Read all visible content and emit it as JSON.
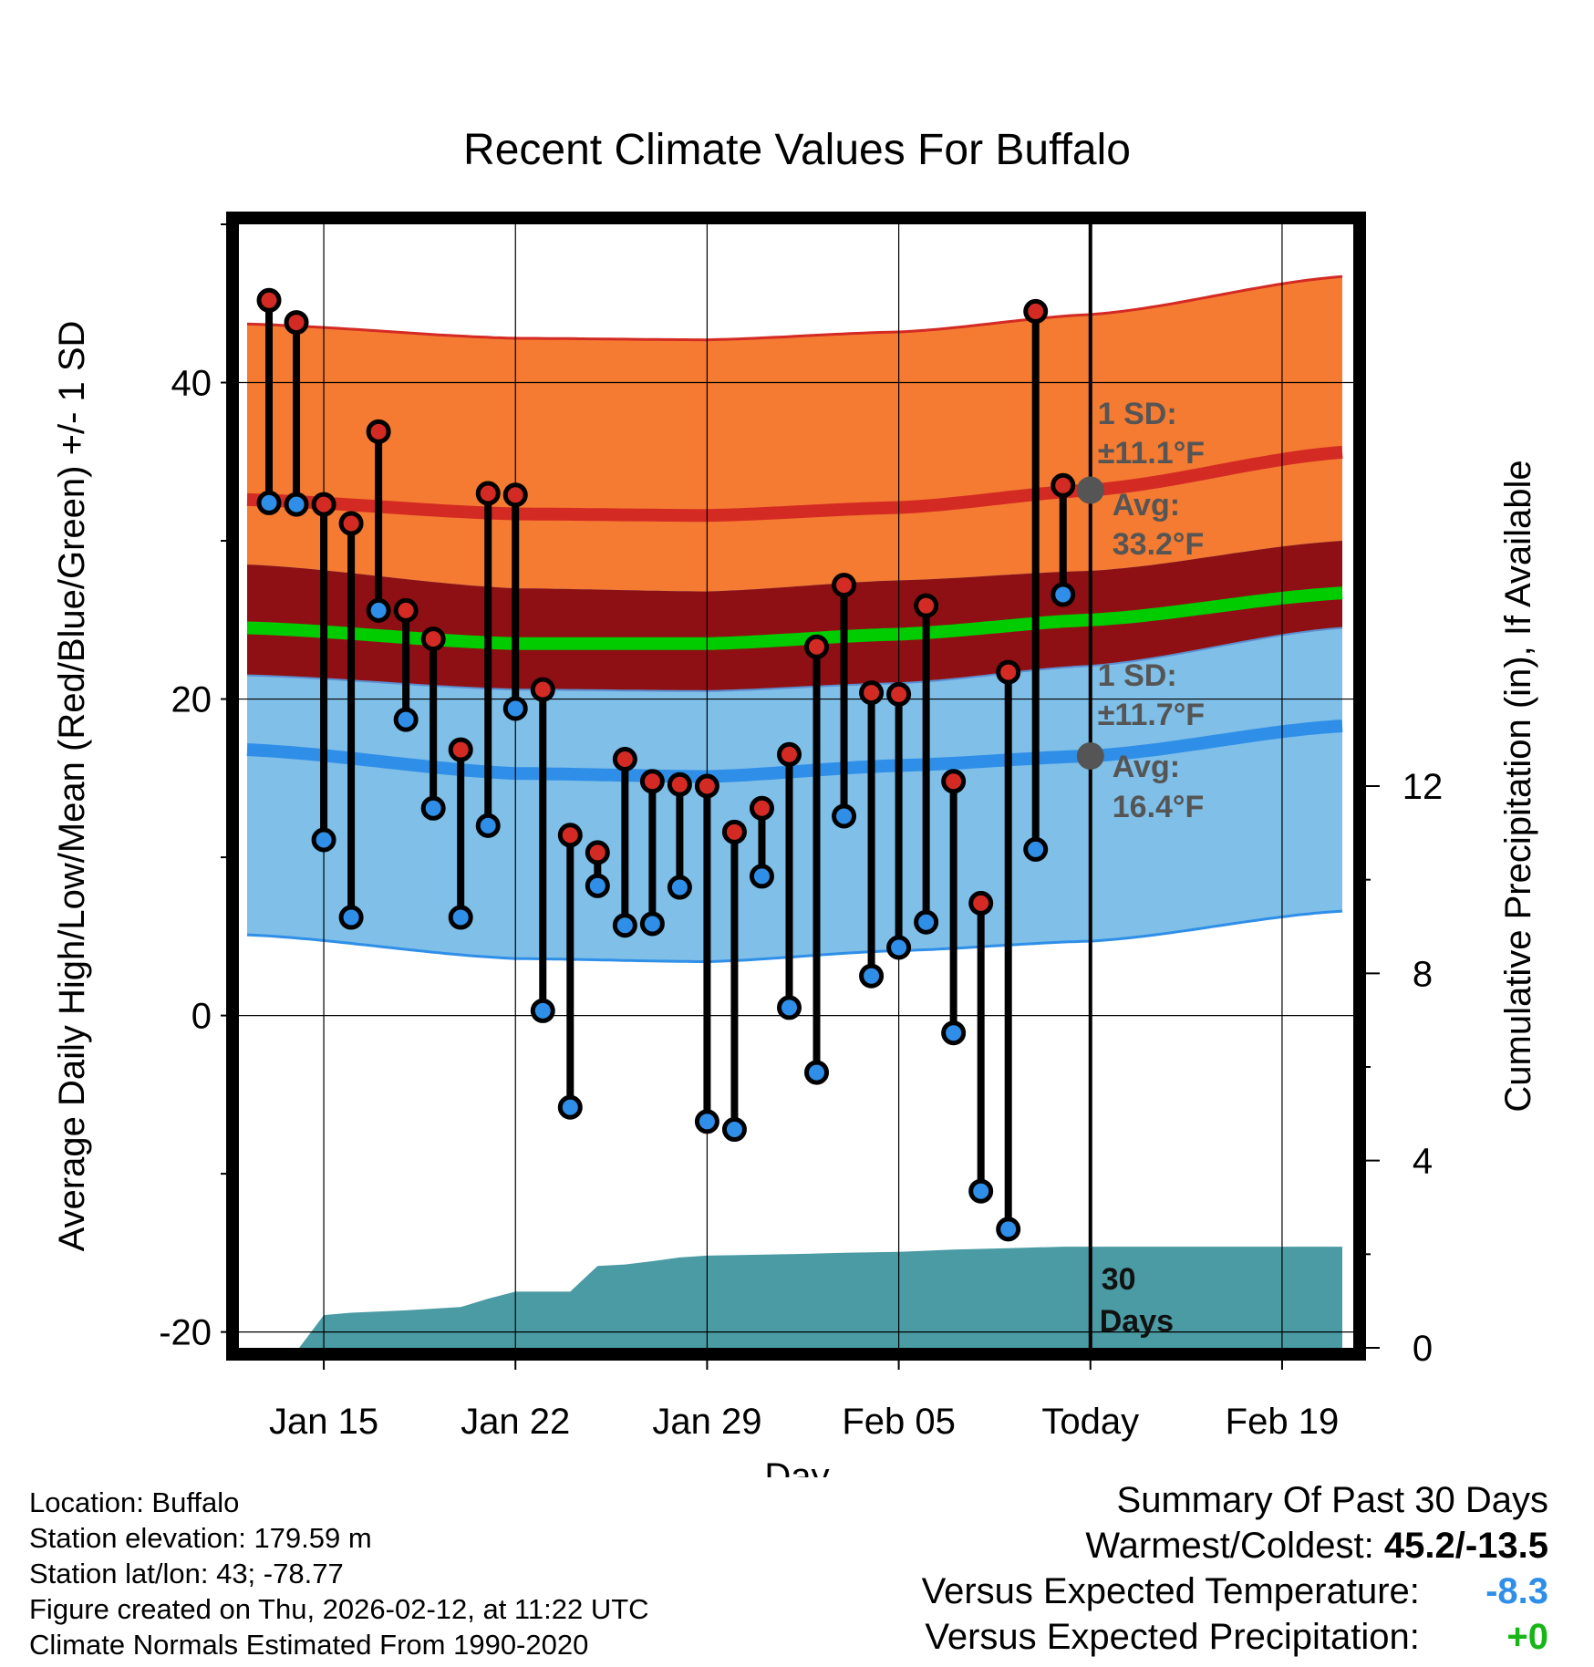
{
  "chart_data": {
    "type": "line",
    "title": "Recent Climate Values For Buffalo",
    "xlabel": "Day",
    "ylabel_left": "Average Daily High/Low/Mean (Red/Blue/Green) +/- 1 SD",
    "ylabel_right": "Cumulative Precipitation (in), If Available",
    "y_left_range": [
      -21,
      50
    ],
    "y_left_ticks": [
      "-20",
      "0",
      "20",
      "40"
    ],
    "y_left_tick_values": [
      -20,
      0,
      20,
      40
    ],
    "y_right_range": [
      0,
      24
    ],
    "y_right_ticks": [
      "0",
      "4",
      "8",
      "12"
    ],
    "y_right_tick_values": [
      0,
      4,
      8,
      12
    ],
    "x_range": [
      11.9,
      52.6
    ],
    "x_ticks": [
      "Jan 15",
      "Jan 22",
      "Jan 29",
      "Feb 05",
      "Today",
      "Feb 19"
    ],
    "x_tick_values": [
      15,
      22,
      29,
      36,
      43,
      50
    ],
    "today_x": 43,
    "highs": [
      45.2,
      43.8,
      32.3,
      31.1,
      36.9,
      25.6,
      23.8,
      16.8,
      33.0,
      32.9,
      20.6,
      11.4,
      10.3,
      16.2,
      14.8,
      14.6,
      14.5,
      11.6,
      13.1,
      16.5,
      23.3,
      27.2,
      20.4,
      20.3,
      25.9,
      14.8,
      7.1,
      21.7,
      44.5,
      33.5
    ],
    "lows": [
      32.4,
      32.3,
      11.1,
      6.2,
      25.6,
      18.7,
      13.1,
      6.2,
      12.0,
      19.4,
      0.3,
      -5.8,
      8.2,
      5.7,
      5.8,
      8.1,
      -6.7,
      -7.2,
      8.8,
      0.5,
      -3.6,
      12.6,
      2.5,
      4.3,
      5.9,
      -1.1,
      -11.1,
      -13.5,
      10.5,
      26.6
    ],
    "first_day": 13,
    "normal_high": {
      "days": [
        12.2,
        22,
        29,
        36,
        43,
        52.2
      ],
      "values": [
        32.6,
        31.7,
        31.6,
        32.1,
        33.2,
        35.6
      ]
    },
    "normal_mean": {
      "days": [
        12.2,
        22,
        29,
        36,
        43,
        52.2
      ],
      "values": [
        24.5,
        23.5,
        23.5,
        24.1,
        25.0,
        26.7
      ]
    },
    "normal_low": {
      "days": [
        12.2,
        22,
        29,
        36,
        43,
        52.2
      ],
      "values": [
        16.8,
        15.3,
        15.1,
        15.8,
        16.4,
        18.3
      ]
    },
    "sd_high": 11.1,
    "sd_low": 11.7,
    "precip": {
      "days": [
        15,
        16,
        18,
        20,
        21,
        22,
        23,
        24,
        25,
        26,
        27,
        28,
        29,
        30,
        32,
        34,
        36,
        38,
        40,
        42,
        43,
        52.2
      ],
      "values": [
        0.7,
        0.75,
        0.8,
        0.87,
        1.05,
        1.2,
        1.2,
        1.2,
        1.75,
        1.78,
        1.85,
        1.93,
        1.97,
        1.98,
        2.0,
        2.03,
        2.05,
        2.1,
        2.13,
        2.16,
        2.16,
        2.16
      ]
    },
    "annotations": {
      "high_sd": [
        "1 SD:",
        "±11.1°F"
      ],
      "high_avg": [
        "Avg:",
        "33.2°F"
      ],
      "low_sd": [
        "1 SD:",
        "±11.7°F"
      ],
      "low_avg": [
        "Avg:",
        "16.4°F"
      ],
      "days": [
        "30",
        "Days"
      ]
    },
    "colors": {
      "orange_band": "#f47b31",
      "dark_red_band": "#8f1014",
      "blue_band": "#7fbfe8",
      "green_line": "#00cc00",
      "high_line": "#d42a24",
      "low_line": "#2f8fe8",
      "precip": "#4a9ba4",
      "high_dot": "#d42a24",
      "low_dot": "#2f8fe8",
      "avg_dot": "#555555"
    }
  },
  "footer": {
    "location": "Location: Buffalo",
    "elevation": "Station elevation: 179.59 m",
    "latlon": "Station lat/lon: 43; -78.77",
    "created": "Figure created on Thu, 2026-02-12, at 11:22 UTC",
    "normals": "Climate Normals Estimated From 1990-2020"
  },
  "summary": {
    "title": "Summary Of Past 30 Days",
    "warm_cold_label": "Warmest/Coldest:",
    "warm_cold_value": "45.2/-13.5",
    "temp_label": "Versus Expected Temperature:",
    "temp_value": "-8.3",
    "prcp_label": "Versus Expected Precipitation:",
    "prcp_value": "+0"
  }
}
